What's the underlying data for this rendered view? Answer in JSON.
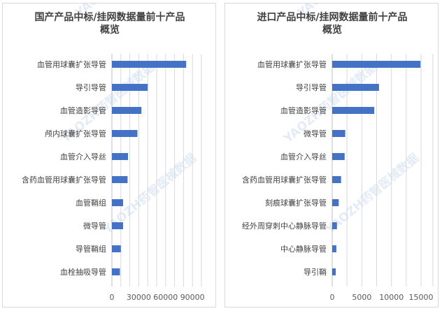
{
  "chart_data": [
    {
      "type": "bar",
      "orientation": "horizontal",
      "title": [
        "国产产品中标/挂网数据量前十产品",
        "概览"
      ],
      "categories": [
        "血管用球囊扩张导管",
        "导引导管",
        "血管造影导管",
        "颅内球囊扩张导管",
        "血管介入导丝",
        "含药血管用球囊扩张导管",
        "血管鞘组",
        "微导管",
        "导管鞘组",
        "血栓抽吸导管"
      ],
      "values": [
        83000,
        40000,
        33000,
        28500,
        18000,
        17500,
        12500,
        12500,
        10000,
        9000
      ],
      "xlim": [
        0,
        100000
      ],
      "ticks": [
        0,
        30000,
        60000,
        90000
      ],
      "tick_labels": [
        "0",
        "30000",
        "60000",
        "90000"
      ],
      "grid_values": [
        0,
        10000,
        20000,
        30000,
        40000,
        50000,
        60000,
        70000,
        80000,
        90000,
        100000
      ],
      "bar_color": "#4472c4",
      "grid": true,
      "legend": "none"
    },
    {
      "type": "bar",
      "orientation": "horizontal",
      "title": [
        "进口产品中标/挂网数据量前十产品",
        "概览"
      ],
      "categories": [
        "血管用球囊扩张导管",
        "导引导管",
        "血管造影导管",
        "微导管",
        "血管介入导丝",
        "含药血管用球囊扩张导管",
        "刻痕球囊扩张导管",
        "经外周穿刺中心静脉导管",
        "中心静脉导管",
        "导引鞘"
      ],
      "values": [
        14900,
        7900,
        7100,
        2200,
        2100,
        1500,
        1100,
        800,
        700,
        600
      ],
      "xlim": [
        0,
        17000
      ],
      "ticks": [
        0,
        5000,
        10000,
        15000
      ],
      "tick_labels": [
        "0",
        "5000",
        "10000",
        "15000"
      ],
      "grid_values": [
        0,
        2500,
        5000,
        7500,
        10000,
        12500,
        15000,
        17000
      ],
      "bar_color": "#4472c4",
      "grid": true,
      "legend": "none"
    }
  ],
  "watermark": "YAOZH药智医械数据"
}
